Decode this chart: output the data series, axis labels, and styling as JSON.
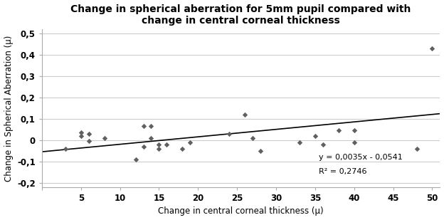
{
  "title_line1": "Change in spherical aberration for 5mm pupil compared with",
  "title_line2": "change in central corneal thickness",
  "xlabel": "Change in central corneal thickness (µ)",
  "ylabel": "Change in Spherical Aberration (µ)",
  "scatter_x": [
    3,
    5,
    5,
    6,
    6,
    8,
    12,
    13,
    13,
    14,
    14,
    15,
    15,
    16,
    18,
    19,
    24,
    26,
    27,
    28,
    33,
    35,
    36,
    38,
    40,
    40,
    48,
    50
  ],
  "scatter_y": [
    -0.04,
    0.02,
    0.035,
    -0.005,
    0.03,
    0.01,
    -0.09,
    0.065,
    -0.03,
    0.065,
    0.01,
    -0.02,
    -0.04,
    -0.02,
    -0.04,
    -0.01,
    0.03,
    0.12,
    0.01,
    -0.05,
    -0.01,
    0.02,
    -0.02,
    0.045,
    -0.01,
    0.045,
    -0.04,
    0.43
  ],
  "scatter_color": "#606060",
  "line_slope": 0.0035,
  "line_intercept": -0.0541,
  "line_color": "#000000",
  "equation_text": "y = 0,0035x - 0,0541",
  "r2_text": "R² = 0,2746",
  "xlim": [
    0,
    51
  ],
  "ylim": [
    -0.22,
    0.52
  ],
  "xticks": [
    0,
    5,
    10,
    15,
    20,
    25,
    30,
    35,
    40,
    45,
    50
  ],
  "yticks": [
    -0.2,
    -0.1,
    0.0,
    0.1,
    0.2,
    0.3,
    0.4,
    0.5
  ],
  "background_color": "#ffffff",
  "grid_color": "#cccccc",
  "title_fontsize": 10,
  "axis_label_fontsize": 8.5,
  "tick_fontsize": 8.5
}
